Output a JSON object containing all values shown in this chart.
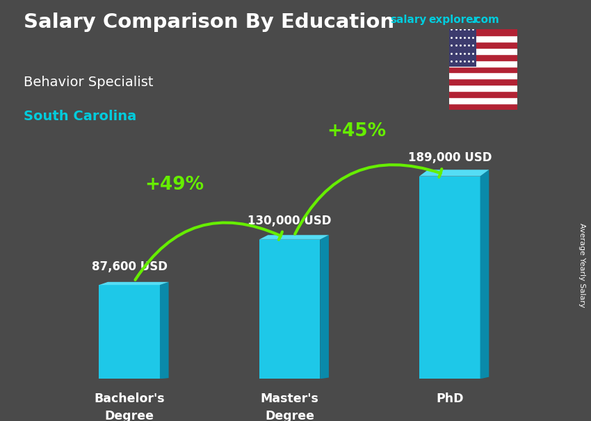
{
  "title": "Salary Comparison By Education",
  "subtitle": "Behavior Specialist",
  "location": "South Carolina",
  "categories": [
    "Bachelor's\nDegree",
    "Master's\nDegree",
    "PhD"
  ],
  "values": [
    87600,
    130000,
    189000
  ],
  "value_labels": [
    "87,600 USD",
    "130,000 USD",
    "189,000 USD"
  ],
  "pct_labels": [
    "+49%",
    "+45%"
  ],
  "bar_color_front": "#1ec8e8",
  "bar_color_right": "#0a8aaa",
  "bar_color_top": "#55ddf5",
  "bg_color": "#4a4a4a",
  "title_color": "#ffffff",
  "subtitle_color": "#ffffff",
  "location_color": "#00ccdd",
  "value_label_color": "#ffffff",
  "pct_color": "#66ee00",
  "arrow_color": "#66ee00",
  "watermark_color": "#00ccdd",
  "side_label": "Average Yearly Salary",
  "bar_width": 0.38
}
